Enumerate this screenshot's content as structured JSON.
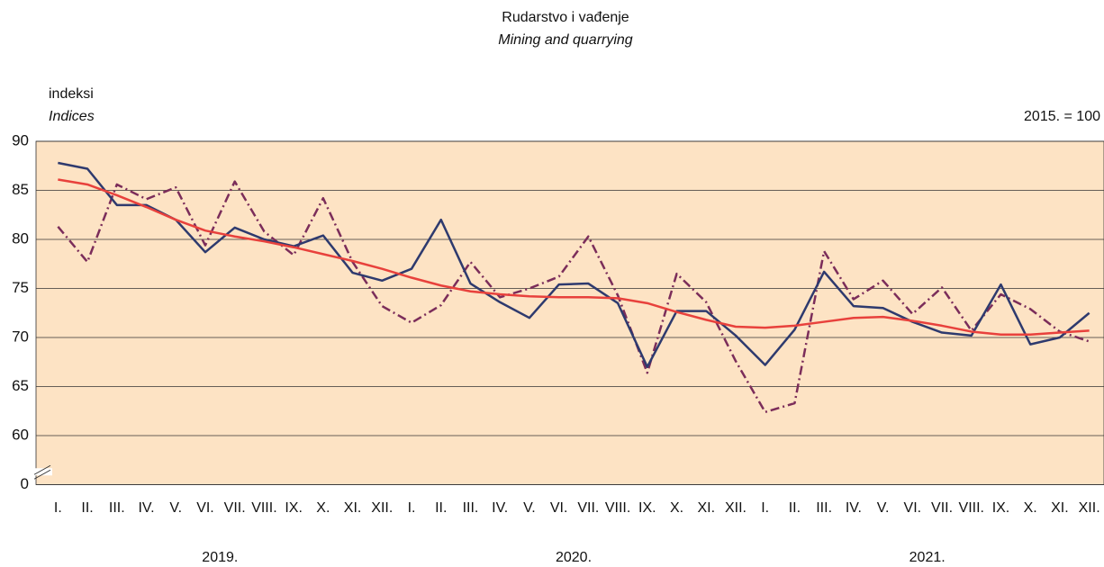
{
  "chart_data": {
    "type": "line",
    "title": "Rudarstvo i vađenje",
    "subtitle": "Mining and quarrying",
    "y_label": "indeksi",
    "y_label_en": "Indices",
    "annotation": "2015. = 100",
    "categories": [
      "I.",
      "II.",
      "III.",
      "IV.",
      "V.",
      "VI.",
      "VII.",
      "VIII.",
      "IX.",
      "X.",
      "XI.",
      "XII.",
      "I.",
      "II.",
      "III.",
      "IV.",
      "V.",
      "VI.",
      "VII.",
      "VIII.",
      "IX.",
      "X.",
      "XI.",
      "XII.",
      "I.",
      "II.",
      "III.",
      "IV.",
      "V.",
      "VI.",
      "VII.",
      "VIII.",
      "IX.",
      "X.",
      "XI.",
      "XII."
    ],
    "x_groups": [
      "2019.",
      "2020.",
      "2021."
    ],
    "series": [
      {
        "color": "#7b2d5a",
        "style": "dashdot",
        "values": [
          81.3,
          77.7,
          85.6,
          84.1,
          85.3,
          79.4,
          85.9,
          80.8,
          78.4,
          84.2,
          77.7,
          73.2,
          71.5,
          73.3,
          77.7,
          74.1,
          75.0,
          76.2,
          80.3,
          74.3,
          66.4,
          76.5,
          73.6,
          67.6,
          62.4,
          63.3,
          78.8,
          73.9,
          75.8,
          72.4,
          75.1,
          70.7,
          74.4,
          72.9,
          70.6,
          69.6
        ]
      },
      {
        "color": "#2e3a6e",
        "style": "solid",
        "values": [
          87.8,
          87.2,
          83.5,
          83.5,
          82.0,
          78.7,
          81.2,
          80.0,
          79.3,
          80.4,
          76.6,
          75.8,
          77.0,
          82.0,
          75.5,
          73.6,
          72.0,
          75.4,
          75.5,
          73.5,
          67.0,
          72.7,
          72.7,
          70.2,
          67.2,
          70.8,
          76.7,
          73.2,
          73.0,
          71.6,
          70.5,
          70.2,
          75.4,
          69.3,
          70.0,
          72.5
        ]
      },
      {
        "color": "#e8413c",
        "style": "solid",
        "values": [
          86.1,
          85.6,
          84.5,
          83.3,
          82.0,
          80.9,
          80.3,
          79.8,
          79.2,
          78.5,
          77.8,
          77.0,
          76.1,
          75.3,
          74.7,
          74.4,
          74.2,
          74.1,
          74.1,
          74.0,
          73.5,
          72.6,
          71.8,
          71.1,
          71.0,
          71.2,
          71.6,
          72.0,
          72.1,
          71.7,
          71.2,
          70.6,
          70.3,
          70.3,
          70.5,
          70.7
        ]
      }
    ],
    "ylim": [
      0,
      90
    ],
    "yticks": [
      0,
      60,
      65,
      70,
      75,
      80,
      85,
      90
    ],
    "axis_break": true,
    "grid": true,
    "plot_background": "#fde3c4"
  }
}
